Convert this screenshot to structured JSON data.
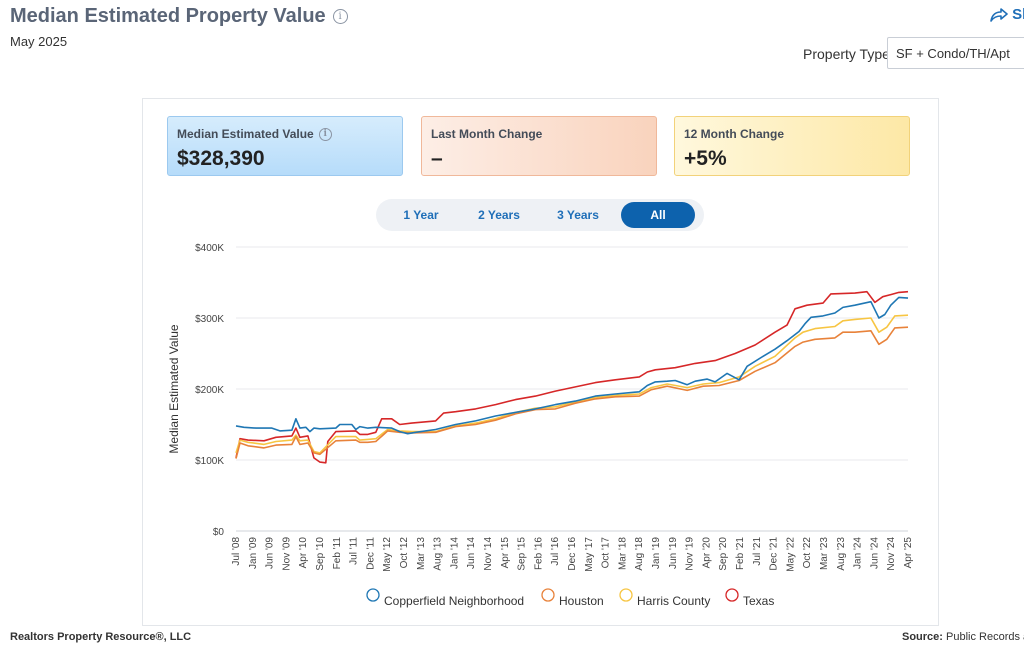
{
  "header": {
    "title": "Median Estimated Property Value",
    "info_glyph": "i",
    "subtitle": "May 2025",
    "share_label": "Sh",
    "property_type_label": "Property Type",
    "property_type_value": "SF + Condo/TH/Apt"
  },
  "cards": [
    {
      "label": "Median Estimated Value",
      "value": "$328,390"
    },
    {
      "label": "Last Month Change",
      "value": "–"
    },
    {
      "label": "12 Month Change",
      "value": "+5%"
    }
  ],
  "ranges": [
    {
      "label": "1 Year"
    },
    {
      "label": "2 Years"
    },
    {
      "label": "3 Years"
    },
    {
      "label": "All",
      "active": true
    }
  ],
  "chart_data": {
    "type": "line",
    "title": "",
    "xlabel": "",
    "ylabel": "Median Estimated Value",
    "ylim": [
      0,
      400000
    ],
    "y_ticks": [
      "$0",
      "$100K",
      "$200K",
      "$300K",
      "$400K"
    ],
    "x_tick_labels": [
      "Jul '08",
      "Jan '09",
      "Jun '09",
      "Nov '09",
      "Apr '10",
      "Sep '10",
      "Feb '11",
      "Jul '11",
      "Dec '11",
      "May '12",
      "Oct '12",
      "Mar '13",
      "Aug '13",
      "Jan '14",
      "Jun '14",
      "Nov '14",
      "Apr '15",
      "Sep '15",
      "Feb '16",
      "Jul '16",
      "Dec '16",
      "May '17",
      "Oct '17",
      "Mar '18",
      "Aug '18",
      "Jan '19",
      "Jun '19",
      "Nov '19",
      "Apr '20",
      "Sep '20",
      "Feb '21",
      "Jul '21",
      "Dec '21",
      "May '22",
      "Oct '22",
      "Mar '23",
      "Aug '23",
      "Jan '24",
      "Jun '24",
      "Nov '24",
      "Apr '25"
    ],
    "x_range": [
      2008.5,
      2025.33
    ],
    "series": [
      {
        "name": "Copperfield Neighborhood",
        "color": "#1f77b4",
        "points": [
          [
            2008.5,
            148000
          ],
          [
            2008.7,
            146000
          ],
          [
            2009.0,
            145000
          ],
          [
            2009.4,
            145000
          ],
          [
            2009.6,
            141000
          ],
          [
            2009.9,
            142000
          ],
          [
            2010.0,
            158000
          ],
          [
            2010.1,
            145000
          ],
          [
            2010.25,
            146000
          ],
          [
            2010.35,
            140000
          ],
          [
            2010.45,
            145000
          ],
          [
            2010.6,
            144000
          ],
          [
            2011.0,
            145000
          ],
          [
            2011.1,
            150000
          ],
          [
            2011.4,
            150000
          ],
          [
            2011.5,
            143000
          ],
          [
            2011.6,
            147000
          ],
          [
            2011.8,
            145000
          ],
          [
            2012.0,
            146000
          ],
          [
            2012.4,
            145000
          ],
          [
            2012.6,
            140000
          ],
          [
            2012.8,
            137000
          ],
          [
            2013.0,
            139000
          ],
          [
            2013.5,
            143000
          ],
          [
            2014.0,
            150000
          ],
          [
            2014.5,
            155000
          ],
          [
            2015.0,
            162000
          ],
          [
            2015.5,
            167000
          ],
          [
            2016.0,
            172000
          ],
          [
            2016.5,
            178000
          ],
          [
            2017.0,
            183000
          ],
          [
            2017.5,
            190000
          ],
          [
            2018.0,
            193000
          ],
          [
            2018.6,
            196000
          ],
          [
            2018.8,
            205000
          ],
          [
            2019.0,
            210000
          ],
          [
            2019.3,
            211000
          ],
          [
            2019.5,
            212000
          ],
          [
            2019.8,
            206000
          ],
          [
            2020.0,
            211000
          ],
          [
            2020.3,
            214000
          ],
          [
            2020.5,
            210000
          ],
          [
            2020.8,
            222000
          ],
          [
            2021.1,
            213000
          ],
          [
            2021.3,
            232000
          ],
          [
            2021.7,
            246000
          ],
          [
            2022.0,
            256000
          ],
          [
            2022.3,
            268000
          ],
          [
            2022.6,
            281000
          ],
          [
            2022.75,
            292000
          ],
          [
            2022.9,
            301000
          ],
          [
            2023.2,
            303000
          ],
          [
            2023.5,
            307000
          ],
          [
            2023.7,
            315000
          ],
          [
            2024.0,
            318000
          ],
          [
            2024.4,
            323000
          ],
          [
            2024.6,
            300000
          ],
          [
            2024.75,
            305000
          ],
          [
            2024.9,
            318000
          ],
          [
            2025.1,
            329000
          ],
          [
            2025.33,
            328000
          ]
        ]
      },
      {
        "name": "Houston",
        "color": "#e8823a",
        "points": [
          [
            2008.5,
            102000
          ],
          [
            2008.6,
            124000
          ],
          [
            2008.8,
            120000
          ],
          [
            2009.2,
            117000
          ],
          [
            2009.5,
            121000
          ],
          [
            2009.9,
            122000
          ],
          [
            2010.0,
            133000
          ],
          [
            2010.1,
            122000
          ],
          [
            2010.3,
            124000
          ],
          [
            2010.45,
            110000
          ],
          [
            2010.6,
            108000
          ],
          [
            2011.0,
            127000
          ],
          [
            2011.5,
            128000
          ],
          [
            2011.6,
            125000
          ],
          [
            2011.8,
            125000
          ],
          [
            2012.0,
            126000
          ],
          [
            2012.3,
            141000
          ],
          [
            2012.6,
            139000
          ],
          [
            2012.9,
            138000
          ],
          [
            2013.5,
            139000
          ],
          [
            2014.0,
            147000
          ],
          [
            2014.5,
            150000
          ],
          [
            2015.0,
            156000
          ],
          [
            2015.5,
            165000
          ],
          [
            2016.0,
            171000
          ],
          [
            2016.5,
            172000
          ],
          [
            2017.0,
            180000
          ],
          [
            2017.5,
            186000
          ],
          [
            2018.0,
            189000
          ],
          [
            2018.6,
            190000
          ],
          [
            2018.9,
            199000
          ],
          [
            2019.3,
            204000
          ],
          [
            2019.8,
            198000
          ],
          [
            2020.2,
            204000
          ],
          [
            2020.6,
            205000
          ],
          [
            2021.1,
            212000
          ],
          [
            2021.5,
            225000
          ],
          [
            2022.0,
            237000
          ],
          [
            2022.5,
            260000
          ],
          [
            2022.7,
            266000
          ],
          [
            2023.0,
            270000
          ],
          [
            2023.5,
            272000
          ],
          [
            2023.7,
            280000
          ],
          [
            2024.0,
            280000
          ],
          [
            2024.4,
            282000
          ],
          [
            2024.6,
            263000
          ],
          [
            2024.8,
            270000
          ],
          [
            2025.0,
            286000
          ],
          [
            2025.33,
            287000
          ]
        ]
      },
      {
        "name": "Harris County",
        "color": "#f7c542",
        "points": [
          [
            2008.5,
            110000
          ],
          [
            2008.6,
            128000
          ],
          [
            2008.8,
            125000
          ],
          [
            2009.2,
            122000
          ],
          [
            2009.5,
            126000
          ],
          [
            2009.9,
            128000
          ],
          [
            2010.0,
            135000
          ],
          [
            2010.1,
            127000
          ],
          [
            2010.3,
            128000
          ],
          [
            2010.45,
            112000
          ],
          [
            2010.6,
            110000
          ],
          [
            2011.0,
            133000
          ],
          [
            2011.5,
            133000
          ],
          [
            2011.6,
            128000
          ],
          [
            2011.8,
            129000
          ],
          [
            2012.0,
            130000
          ],
          [
            2012.3,
            143000
          ],
          [
            2012.6,
            141000
          ],
          [
            2012.9,
            140000
          ],
          [
            2013.5,
            140000
          ],
          [
            2014.0,
            148000
          ],
          [
            2014.5,
            152000
          ],
          [
            2015.0,
            158000
          ],
          [
            2015.5,
            167000
          ],
          [
            2016.0,
            173000
          ],
          [
            2016.5,
            175000
          ],
          [
            2017.0,
            182000
          ],
          [
            2017.5,
            188000
          ],
          [
            2018.0,
            191000
          ],
          [
            2018.6,
            193000
          ],
          [
            2018.9,
            202000
          ],
          [
            2019.3,
            207000
          ],
          [
            2019.8,
            202000
          ],
          [
            2020.2,
            207000
          ],
          [
            2020.6,
            209000
          ],
          [
            2021.1,
            217000
          ],
          [
            2021.5,
            232000
          ],
          [
            2022.0,
            246000
          ],
          [
            2022.5,
            272000
          ],
          [
            2022.7,
            280000
          ],
          [
            2023.0,
            285000
          ],
          [
            2023.5,
            288000
          ],
          [
            2023.7,
            296000
          ],
          [
            2024.0,
            298000
          ],
          [
            2024.4,
            300000
          ],
          [
            2024.6,
            280000
          ],
          [
            2024.8,
            287000
          ],
          [
            2025.0,
            303000
          ],
          [
            2025.33,
            304000
          ]
        ]
      },
      {
        "name": "Texas",
        "color": "#d62728",
        "points": [
          [
            2008.5,
            103000
          ],
          [
            2008.6,
            130000
          ],
          [
            2008.8,
            128000
          ],
          [
            2009.2,
            127000
          ],
          [
            2009.5,
            132000
          ],
          [
            2009.9,
            134000
          ],
          [
            2010.0,
            145000
          ],
          [
            2010.1,
            132000
          ],
          [
            2010.3,
            134000
          ],
          [
            2010.45,
            103000
          ],
          [
            2010.6,
            97000
          ],
          [
            2010.75,
            96000
          ],
          [
            2010.8,
            126000
          ],
          [
            2011.0,
            140000
          ],
          [
            2011.5,
            141000
          ],
          [
            2011.6,
            136000
          ],
          [
            2011.8,
            136000
          ],
          [
            2012.0,
            139000
          ],
          [
            2012.15,
            158000
          ],
          [
            2012.4,
            158000
          ],
          [
            2012.6,
            150000
          ],
          [
            2012.9,
            152000
          ],
          [
            2013.5,
            155000
          ],
          [
            2013.7,
            166000
          ],
          [
            2014.0,
            168000
          ],
          [
            2014.5,
            172000
          ],
          [
            2015.0,
            178000
          ],
          [
            2015.5,
            185000
          ],
          [
            2016.0,
            190000
          ],
          [
            2016.5,
            197000
          ],
          [
            2017.0,
            203000
          ],
          [
            2017.5,
            209000
          ],
          [
            2018.0,
            213000
          ],
          [
            2018.6,
            217000
          ],
          [
            2018.8,
            224000
          ],
          [
            2019.0,
            227000
          ],
          [
            2019.5,
            230000
          ],
          [
            2020.0,
            236000
          ],
          [
            2020.5,
            240000
          ],
          [
            2021.0,
            250000
          ],
          [
            2021.5,
            262000
          ],
          [
            2022.0,
            280000
          ],
          [
            2022.3,
            290000
          ],
          [
            2022.5,
            313000
          ],
          [
            2022.8,
            318000
          ],
          [
            2023.2,
            321000
          ],
          [
            2023.4,
            334000
          ],
          [
            2024.0,
            335000
          ],
          [
            2024.3,
            337000
          ],
          [
            2024.5,
            322000
          ],
          [
            2024.7,
            330000
          ],
          [
            2024.9,
            333000
          ],
          [
            2025.1,
            336000
          ],
          [
            2025.33,
            337000
          ]
        ]
      }
    ]
  },
  "footer": {
    "left": "Realtors Property Resource®, LLC",
    "right_label": "Source:",
    "right_text": " Public Records an"
  }
}
